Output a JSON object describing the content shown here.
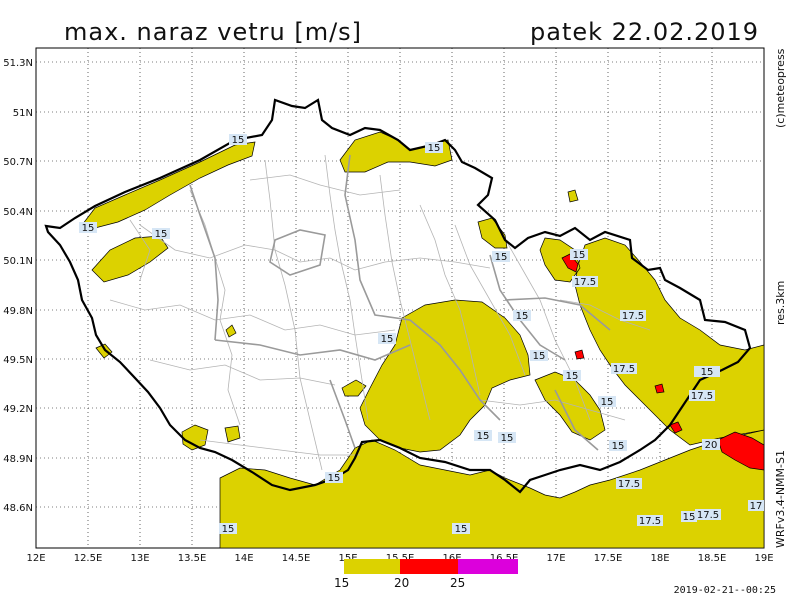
{
  "header": {
    "title": "max. naraz vetru [m/s]",
    "date": "patek 22.02.2019"
  },
  "side_labels": {
    "copyright": "(c)meteopress",
    "resolution": "res.3km",
    "model": "WRFv3.4-NMM-S1"
  },
  "axes": {
    "lat_ticks": [
      "51.3N",
      "51N",
      "50.7N",
      "50.4N",
      "50.1N",
      "49.8N",
      "49.5N",
      "49.2N",
      "48.9N",
      "48.6N"
    ],
    "lon_ticks": [
      "12E",
      "12.5E",
      "13E",
      "13.5E",
      "14E",
      "14.5E",
      "15E",
      "15.5E",
      "16E",
      "16.5E",
      "17E",
      "17.5E",
      "18E",
      "18.5E",
      "19E"
    ]
  },
  "legend": {
    "labels": [
      "15",
      "20",
      "25"
    ],
    "colors": [
      "#dcd200",
      "#ff0000",
      "#dc00dc"
    ]
  },
  "contour_labels": [
    "15",
    "15",
    "15",
    "15",
    "15",
    "15",
    "15",
    "15",
    "15",
    "15",
    "15",
    "15",
    "15",
    "15",
    "15",
    "15",
    "15",
    "17.5",
    "17.5",
    "17.5",
    "17.5",
    "17.5",
    "17.5",
    "17.5",
    "17.5",
    "20",
    "17"
  ],
  "colors": {
    "fill_15": "#dcd200",
    "fill_20": "#ff0000",
    "fill_25": "#dc00dc",
    "border": "#000000",
    "districts": "#b4b4b4",
    "regions": "#a0a0a0",
    "grid": "#000000"
  },
  "timestamp": "2019-02-21--00:25"
}
